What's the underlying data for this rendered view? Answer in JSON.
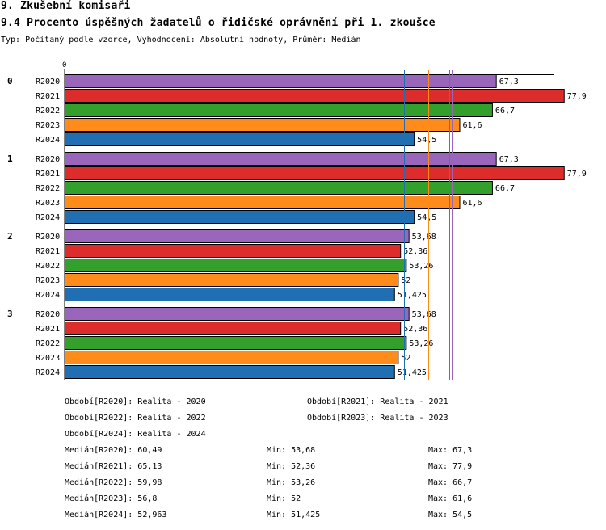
{
  "header": {
    "title": "9. Zkušební komisaři",
    "subtitle": "9.4 Procento úspěšných žadatelů o řidičské oprávnění při 1. zkoušce",
    "info": "Typ: Počítaný podle vzorce, Vyhodnocení: Absolutní hodnoty, Průměr: Medián"
  },
  "chart_data": {
    "type": "bar",
    "orientation": "horizontal",
    "axis_zero_label": "0",
    "xlim": [
      0,
      82
    ],
    "groups": [
      "0",
      "1",
      "2",
      "3"
    ],
    "series": [
      {
        "name": "R2020",
        "color": "#9966bb",
        "values": [
          67.3,
          67.3,
          53.68,
          53.68
        ],
        "labels": [
          "67,3",
          "67,3",
          "53,68",
          "53,68"
        ]
      },
      {
        "name": "R2021",
        "color": "#dd2c2c",
        "values": [
          77.9,
          77.9,
          52.36,
          52.36
        ],
        "labels": [
          "77,9",
          "77,9",
          "52,36",
          "52,36"
        ]
      },
      {
        "name": "R2022",
        "color": "#33a02c",
        "values": [
          66.7,
          66.7,
          53.26,
          53.26
        ],
        "labels": [
          "66,7",
          "66,7",
          "53,26",
          "53,26"
        ]
      },
      {
        "name": "R2023",
        "color": "#ff8c1a",
        "values": [
          61.6,
          61.6,
          52,
          52
        ],
        "labels": [
          "61,6",
          "61,6",
          "52",
          "52"
        ]
      },
      {
        "name": "R2024",
        "color": "#1f6fb2",
        "values": [
          54.5,
          54.5,
          51.425,
          51.425
        ],
        "labels": [
          "54,5",
          "54,5",
          "51,425",
          "51,425"
        ]
      }
    ],
    "reference_lines": [
      {
        "series": "R2020",
        "value": 60.49
      },
      {
        "series": "R2021",
        "value": 65.13
      },
      {
        "series": "R2022",
        "value": 59.98
      },
      {
        "series": "R2023",
        "value": 56.8
      },
      {
        "series": "R2024",
        "value": 52.963
      }
    ]
  },
  "legend": {
    "periods": [
      "Období[R2020]: Realita - 2020",
      "Období[R2021]: Realita - 2021",
      "Období[R2022]: Realita - 2022",
      "Období[R2023]: Realita - 2023",
      "Období[R2024]: Realita - 2024"
    ],
    "stats": [
      {
        "median": "Medián[R2020]: 60,49",
        "min": "Min: 53,68",
        "max": "Max: 67,3"
      },
      {
        "median": "Medián[R2021]: 65,13",
        "min": "Min: 52,36",
        "max": "Max: 77,9"
      },
      {
        "median": "Medián[R2022]: 59,98",
        "min": "Min: 53,26",
        "max": "Max: 66,7"
      },
      {
        "median": "Medián[R2023]: 56,8",
        "min": "Min: 52",
        "max": "Max: 61,6"
      },
      {
        "median": "Medián[R2024]: 52,963",
        "min": "Min: 51,425",
        "max": "Max: 54,5"
      }
    ]
  }
}
